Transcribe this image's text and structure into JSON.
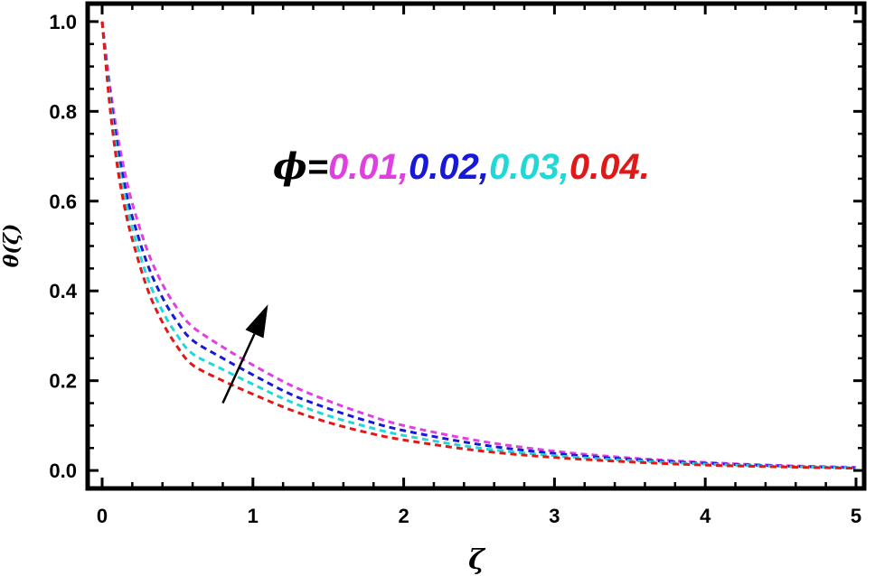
{
  "chart_data": {
    "type": "line",
    "title": "",
    "xlabel": "ζ",
    "ylabel": "θ(ζ)",
    "xlim": [
      0,
      5
    ],
    "ylim": [
      -0.04,
      1.04
    ],
    "xticks": [
      "0",
      "1",
      "2",
      "3",
      "4",
      "5"
    ],
    "yticks": [
      "0.0",
      "0.2",
      "0.4",
      "0.6",
      "0.8",
      "1.0"
    ],
    "grid": false,
    "legend": "none",
    "line_style": "dashed",
    "annotation": {
      "symbol": "ϕ",
      "equals": "=",
      "parts": [
        {
          "text": "0.01,",
          "color": "#e040e0"
        },
        {
          "text": "0.02,",
          "color": "#1818d8"
        },
        {
          "text": "0.03,",
          "color": "#20d8d8"
        },
        {
          "text": "0.04.",
          "color": "#e01818"
        }
      ],
      "arrow": {
        "from": [
          0.8,
          0.15
        ],
        "to": [
          1.1,
          0.37
        ]
      }
    },
    "series": [
      {
        "color": "#e040e0",
        "x": [
          0,
          0.05,
          0.1,
          0.15,
          0.2,
          0.3,
          0.4,
          0.5,
          0.6,
          0.8,
          1.0,
          1.25,
          1.5,
          1.75,
          2.0,
          2.5,
          3.0,
          3.5,
          4.0,
          4.5,
          5.0
        ],
        "y": [
          1.0,
          0.86,
          0.75,
          0.665,
          0.595,
          0.49,
          0.415,
          0.36,
          0.32,
          0.275,
          0.235,
          0.19,
          0.155,
          0.125,
          0.1,
          0.066,
          0.043,
          0.028,
          0.018,
          0.011,
          0.007
        ]
      },
      {
        "color": "#1818d8",
        "x": [
          0,
          0.05,
          0.1,
          0.15,
          0.2,
          0.3,
          0.4,
          0.5,
          0.6,
          0.8,
          1.0,
          1.25,
          1.5,
          1.75,
          2.0,
          2.5,
          3.0,
          3.5,
          4.0,
          4.5,
          5.0
        ],
        "y": [
          1.0,
          0.845,
          0.725,
          0.635,
          0.565,
          0.46,
          0.385,
          0.33,
          0.29,
          0.25,
          0.213,
          0.17,
          0.138,
          0.111,
          0.089,
          0.058,
          0.038,
          0.025,
          0.016,
          0.01,
          0.006
        ]
      },
      {
        "color": "#20d8d8",
        "x": [
          0,
          0.05,
          0.1,
          0.15,
          0.2,
          0.3,
          0.4,
          0.5,
          0.6,
          0.8,
          1.0,
          1.25,
          1.5,
          1.75,
          2.0,
          2.5,
          3.0,
          3.5,
          4.0,
          4.5,
          5.0
        ],
        "y": [
          1.0,
          0.83,
          0.7,
          0.61,
          0.54,
          0.43,
          0.355,
          0.3,
          0.26,
          0.225,
          0.192,
          0.153,
          0.122,
          0.098,
          0.078,
          0.05,
          0.033,
          0.022,
          0.014,
          0.009,
          0.006
        ]
      },
      {
        "color": "#e01818",
        "x": [
          0,
          0.05,
          0.1,
          0.15,
          0.2,
          0.3,
          0.4,
          0.5,
          0.6,
          0.8,
          1.0,
          1.25,
          1.5,
          1.75,
          2.0,
          2.5,
          3.0,
          3.5,
          4.0,
          4.5,
          5.0
        ],
        "y": [
          1.0,
          0.815,
          0.68,
          0.585,
          0.515,
          0.405,
          0.33,
          0.275,
          0.235,
          0.2,
          0.17,
          0.135,
          0.107,
          0.085,
          0.068,
          0.044,
          0.029,
          0.019,
          0.012,
          0.008,
          0.005
        ]
      }
    ]
  }
}
